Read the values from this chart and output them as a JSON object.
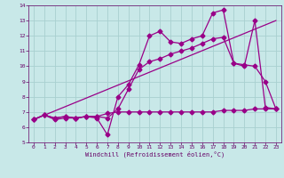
{
  "xlabel": "Windchill (Refroidissement éolien,°C)",
  "background_color": "#c8e8e8",
  "grid_color": "#a8d0d0",
  "line_color": "#990088",
  "xlim": [
    -0.5,
    23.5
  ],
  "ylim": [
    5,
    14
  ],
  "yticks": [
    5,
    6,
    7,
    8,
    9,
    10,
    11,
    12,
    13,
    14
  ],
  "xticks": [
    0,
    1,
    2,
    3,
    4,
    5,
    6,
    7,
    8,
    9,
    10,
    11,
    12,
    13,
    14,
    15,
    16,
    17,
    18,
    19,
    20,
    21,
    22,
    23
  ],
  "line1_x": [
    0,
    1,
    2,
    3,
    4,
    5,
    6,
    7,
    8,
    9,
    10,
    11,
    12,
    13,
    14,
    15,
    16,
    17,
    18,
    19,
    20,
    21,
    22,
    23
  ],
  "line1_y": [
    6.5,
    6.8,
    6.6,
    6.7,
    6.6,
    6.7,
    6.6,
    5.5,
    8.0,
    8.8,
    10.1,
    12.0,
    12.3,
    11.6,
    11.5,
    11.8,
    12.0,
    13.5,
    13.7,
    10.2,
    10.0,
    13.0,
    7.3,
    7.2
  ],
  "line2_x": [
    0,
    1,
    2,
    3,
    4,
    5,
    6,
    7,
    8,
    9,
    10,
    11,
    12,
    13,
    14,
    15,
    16,
    17,
    18,
    19,
    20,
    21,
    22,
    23
  ],
  "line2_y": [
    6.5,
    6.8,
    6.5,
    6.6,
    6.6,
    6.7,
    6.7,
    6.6,
    7.2,
    8.5,
    9.8,
    10.3,
    10.5,
    10.8,
    11.0,
    11.2,
    11.5,
    11.8,
    11.9,
    10.2,
    10.1,
    10.0,
    9.0,
    7.2
  ],
  "line3_x": [
    0,
    23
  ],
  "line3_y": [
    6.5,
    13.0
  ],
  "line4_x": [
    0,
    1,
    2,
    3,
    4,
    5,
    6,
    7,
    8,
    9,
    10,
    11,
    12,
    13,
    14,
    15,
    16,
    17,
    18,
    19,
    20,
    21,
    22,
    23
  ],
  "line4_y": [
    6.5,
    6.8,
    6.6,
    6.7,
    6.6,
    6.7,
    6.7,
    6.9,
    7.0,
    7.0,
    7.0,
    7.0,
    7.0,
    7.0,
    7.0,
    7.0,
    7.0,
    7.0,
    7.1,
    7.1,
    7.1,
    7.2,
    7.2,
    7.2
  ]
}
